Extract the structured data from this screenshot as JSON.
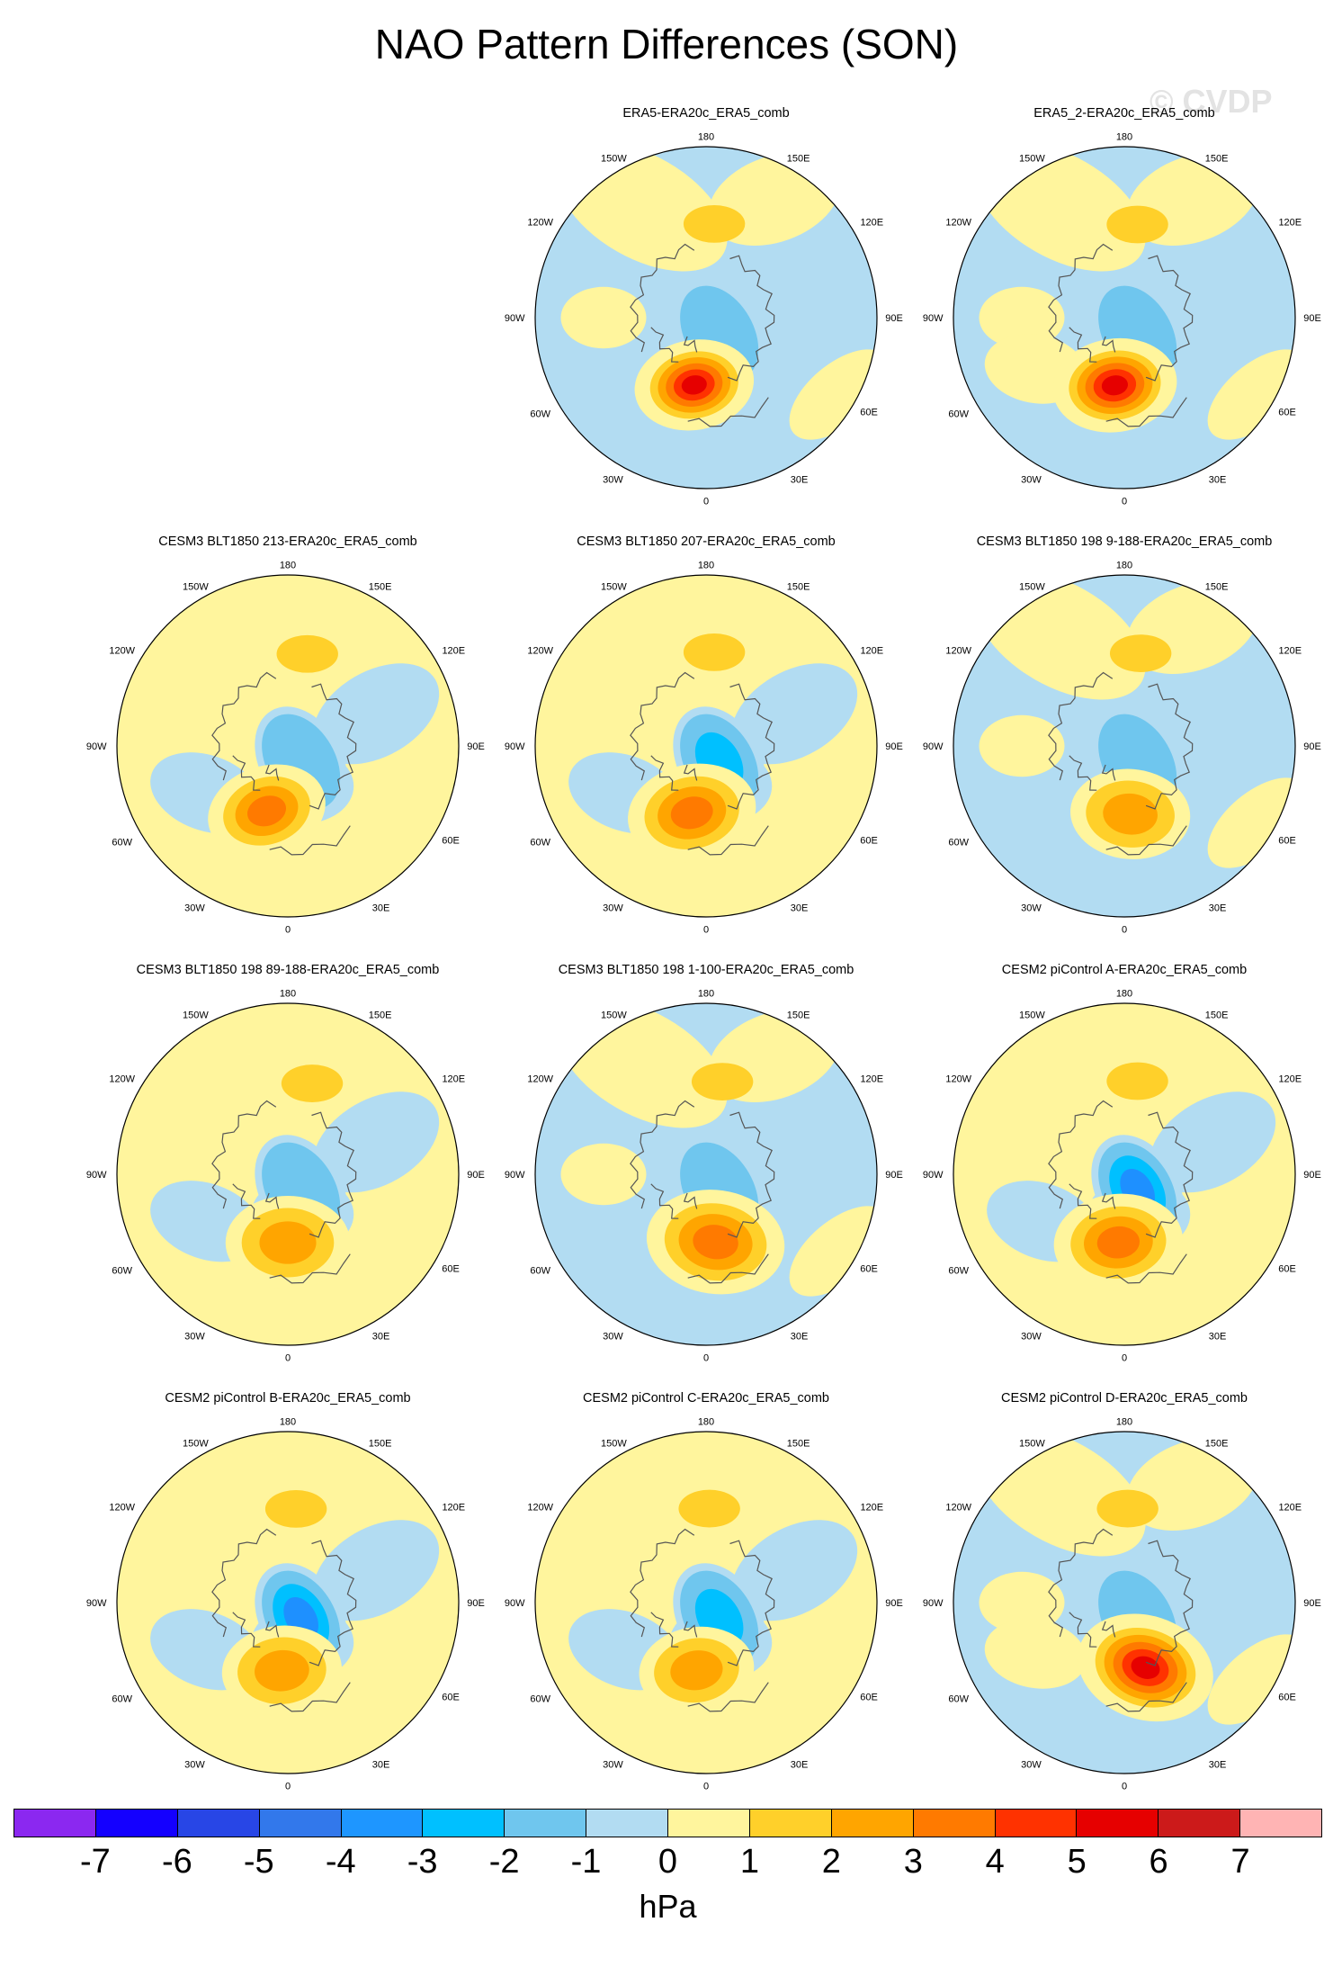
{
  "title": "NAO Pattern Differences (SON)",
  "watermark": "© CVDP",
  "map_labels": {
    "lon_180": "180",
    "lon_150w": "150W",
    "lon_150e": "150E",
    "lon_120w": "120W",
    "lon_120e": "120E",
    "lon_90w": "90W",
    "lon_90e": "90E",
    "lon_60w": "60W",
    "lon_60e": "60E",
    "lon_30w": "30W",
    "lon_30e": "30E",
    "lon_0": "0"
  },
  "colors": {
    "pos1": "#fff59d",
    "pos2": "#ffd02a",
    "pos3": "#ffa500",
    "pos4": "#ff7a00",
    "pos5": "#ff3200",
    "pos6": "#e60000",
    "pos7": "#cc1a1a",
    "neg1": "#b2dcf2",
    "neg2": "#6fc6ee",
    "neg3": "#00c0ff",
    "neg4": "#1e90ff",
    "coast": "#555555"
  },
  "panels": [
    {
      "title": "ERA5-ERA20c_ERA5_comb",
      "atl_high": 5.2,
      "atl_lon": -10,
      "atl_r": 0.26,
      "arctic_low": -1.8,
      "pac_high": 1.6,
      "pac_lon": 175,
      "base": "blue"
    },
    {
      "title": "ERA5_2-ERA20c_ERA5_comb",
      "atl_high": 5.0,
      "atl_lon": -8,
      "atl_r": 0.27,
      "arctic_low": -1.4,
      "pac_high": 1.8,
      "pac_lon": 172,
      "base": "mixed"
    },
    {
      "title": "CESM3 BLT1850 213-ERA20c_ERA5_comb",
      "atl_high": 3.6,
      "atl_lon": -18,
      "atl_r": 0.26,
      "arctic_low": -1.7,
      "pac_high": 1.4,
      "pac_lon": 168,
      "base": "yellow"
    },
    {
      "title": "CESM3 BLT1850 207-ERA20c_ERA5_comb",
      "atl_high": 3.4,
      "atl_lon": -12,
      "atl_r": 0.28,
      "arctic_low": -2.0,
      "pac_high": 1.3,
      "pac_lon": 175,
      "base": "yellow"
    },
    {
      "title": "CESM3 BLT1850 198 9-188-ERA20c_ERA5_comb",
      "atl_high": 2.8,
      "atl_lon": 5,
      "atl_r": 0.26,
      "arctic_low": -1.5,
      "pac_high": 1.2,
      "pac_lon": 170,
      "base": "blue"
    },
    {
      "title": "CESM3 BLT1850 198 89-188-ERA20c_ERA5_comb",
      "atl_high": 2.4,
      "atl_lon": 0,
      "atl_r": 0.27,
      "arctic_low": -1.5,
      "pac_high": 1.3,
      "pac_lon": 165,
      "base": "yellow"
    },
    {
      "title": "CESM3 BLT1850 198 1-100-ERA20c_ERA5_comb",
      "atl_high": 3.5,
      "atl_lon": 8,
      "atl_r": 0.3,
      "arctic_low": -1.6,
      "pac_high": 1.3,
      "pac_lon": 170,
      "base": "blue"
    },
    {
      "title": "CESM2 piControl A-ERA20c_ERA5_comb",
      "atl_high": 3.0,
      "atl_lon": -5,
      "atl_r": 0.28,
      "arctic_low": -3.2,
      "pac_high": 1.3,
      "pac_lon": 172,
      "base": "yellow"
    },
    {
      "title": "CESM2 piControl B-ERA20c_ERA5_comb",
      "atl_high": 2.5,
      "atl_lon": -5,
      "atl_r": 0.26,
      "arctic_low": -3.0,
      "pac_high": 1.7,
      "pac_lon": 175,
      "base": "yellow"
    },
    {
      "title": "CESM2 piControl C-ERA20c_ERA5_comb",
      "atl_high": 2.3,
      "atl_lon": -8,
      "atl_r": 0.25,
      "arctic_low": -2.8,
      "pac_high": 1.6,
      "pac_lon": 178,
      "base": "yellow"
    },
    {
      "title": "CESM2 piControl D-ERA20c_ERA5_comb",
      "atl_high": 5.4,
      "atl_lon": 18,
      "atl_r": 0.3,
      "arctic_low": -1.2,
      "pac_high": 1.8,
      "pac_lon": 178,
      "base": "mixed"
    }
  ],
  "colorbar": {
    "colors": [
      "#8b28f0",
      "#1400ff",
      "#2846e6",
      "#3278eb",
      "#1e96ff",
      "#00c0ff",
      "#6fc6ee",
      "#b2dcf2",
      "#fff59d",
      "#ffd02a",
      "#ffa500",
      "#ff7a00",
      "#ff3200",
      "#e60000",
      "#cc1a1a",
      "#ffb4b4"
    ],
    "ticks": [
      "-7",
      "-6",
      "-5",
      "-4",
      "-3",
      "-2",
      "-1",
      "0",
      "1",
      "2",
      "3",
      "4",
      "5",
      "6",
      "7"
    ],
    "unit": "hPa"
  }
}
